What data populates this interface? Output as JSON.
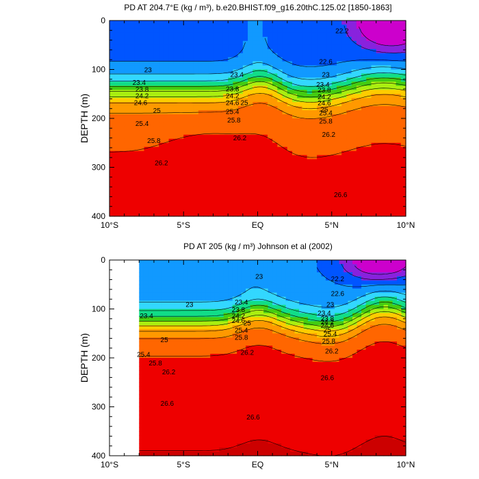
{
  "chart_data": [
    {
      "type": "contour",
      "title": "PD AT 204.7°E (kg / m³), b.e20.BHIST.f09_g16.20thC.125.02 [1850-1863]",
      "ylabel": "DEPTH (m)",
      "xlabel": "",
      "x_ticks": [
        "10°S",
        "5°S",
        "EQ",
        "5°N",
        "10°N"
      ],
      "x_range": [
        -10,
        10
      ],
      "y_ticks": [
        "0",
        "100",
        "200",
        "300",
        "400"
      ],
      "y_range": [
        400,
        0
      ],
      "y_reversed": true,
      "contour_levels": [
        22.2,
        22.6,
        23,
        23.4,
        23.8,
        24.2,
        24.6,
        25,
        25.4,
        25.8,
        26.2,
        26.6
      ],
      "contour_labels": [
        {
          "text": "23",
          "x": -7.4,
          "y": 100
        },
        {
          "text": "23.4",
          "x": -8.0,
          "y": 126
        },
        {
          "text": "23.8",
          "x": -7.8,
          "y": 140
        },
        {
          "text": "24.2",
          "x": -7.8,
          "y": 153
        },
        {
          "text": "24.6",
          "x": -7.9,
          "y": 167
        },
        {
          "text": "25",
          "x": -6.8,
          "y": 183
        },
        {
          "text": "25.4",
          "x": -7.8,
          "y": 210
        },
        {
          "text": "25.8",
          "x": -7.0,
          "y": 245
        },
        {
          "text": "26.2",
          "x": -6.5,
          "y": 290
        },
        {
          "text": "23.4",
          "x": -1.4,
          "y": 110
        },
        {
          "text": "23.8",
          "x": -1.7,
          "y": 139
        },
        {
          "text": "24.2",
          "x": -1.7,
          "y": 153
        },
        {
          "text": "24.6",
          "x": -1.7,
          "y": 167
        },
        {
          "text": "25",
          "x": -0.9,
          "y": 167
        },
        {
          "text": "25.4",
          "x": -1.7,
          "y": 185
        },
        {
          "text": "25.8",
          "x": -1.6,
          "y": 203
        },
        {
          "text": "26.2",
          "x": -1.2,
          "y": 239
        },
        {
          "text": "22.2",
          "x": 5.7,
          "y": 20
        },
        {
          "text": "22.6",
          "x": 4.6,
          "y": 83
        },
        {
          "text": "23",
          "x": 4.6,
          "y": 110
        },
        {
          "text": "23.4",
          "x": 4.4,
          "y": 130
        },
        {
          "text": "23.8",
          "x": 4.5,
          "y": 141
        },
        {
          "text": "24.2",
          "x": 4.5,
          "y": 155
        },
        {
          "text": "24.6",
          "x": 4.5,
          "y": 168
        },
        {
          "text": "25",
          "x": 4.5,
          "y": 181
        },
        {
          "text": "25.4",
          "x": 4.6,
          "y": 188
        },
        {
          "text": "25.8",
          "x": 4.6,
          "y": 205
        },
        {
          "text": "26.2",
          "x": 4.8,
          "y": 232
        },
        {
          "text": "26.6",
          "x": 5.6,
          "y": 355
        }
      ]
    },
    {
      "type": "contour",
      "title": "PD AT 205 (kg / m³) Johnson et al (2002)",
      "ylabel": "DEPTH (m)",
      "xlabel": "",
      "x_ticks": [
        "10°S",
        "5°S",
        "EQ",
        "5°N",
        "10°N"
      ],
      "x_range": [
        -10,
        10
      ],
      "y_ticks": [
        "0",
        "100",
        "200",
        "300",
        "400"
      ],
      "y_range": [
        400,
        0
      ],
      "y_reversed": true,
      "data_x_range": [
        -8,
        10
      ],
      "contour_levels": [
        22.2,
        22.6,
        23,
        23.4,
        23.8,
        24.2,
        24.6,
        25,
        25.4,
        25.8,
        26.2,
        26.6
      ],
      "contour_labels": [
        {
          "text": "23",
          "x": -4.6,
          "y": 90
        },
        {
          "text": "23.4",
          "x": -7.5,
          "y": 113
        },
        {
          "text": "25",
          "x": -6.3,
          "y": 162
        },
        {
          "text": "25.4",
          "x": -7.7,
          "y": 192
        },
        {
          "text": "25.8",
          "x": -6.9,
          "y": 210
        },
        {
          "text": "26.2",
          "x": -6.0,
          "y": 228
        },
        {
          "text": "26.6",
          "x": -6.1,
          "y": 292
        },
        {
          "text": "23",
          "x": 0.1,
          "y": 33
        },
        {
          "text": "23.4",
          "x": -1.1,
          "y": 85
        },
        {
          "text": "23.8",
          "x": -1.3,
          "y": 101
        },
        {
          "text": "24.2",
          "x": -1.3,
          "y": 113
        },
        {
          "text": "24.6",
          "x": -1.3,
          "y": 123
        },
        {
          "text": "25",
          "x": -0.7,
          "y": 128
        },
        {
          "text": "25.4",
          "x": -1.1,
          "y": 143
        },
        {
          "text": "25.8",
          "x": -1.1,
          "y": 157
        },
        {
          "text": "26.2",
          "x": -0.7,
          "y": 188
        },
        {
          "text": "22.2",
          "x": 5.4,
          "y": 38
        },
        {
          "text": "22.6",
          "x": 5.4,
          "y": 68
        },
        {
          "text": "23",
          "x": 4.9,
          "y": 90
        },
        {
          "text": "23.4",
          "x": 4.5,
          "y": 108
        },
        {
          "text": "23.8",
          "x": 4.7,
          "y": 119
        },
        {
          "text": "24.2",
          "x": 4.7,
          "y": 126
        },
        {
          "text": "24.6",
          "x": 4.7,
          "y": 133
        },
        {
          "text": "25",
          "x": 4.7,
          "y": 142
        },
        {
          "text": "25.4",
          "x": 4.9,
          "y": 150
        },
        {
          "text": "25.8",
          "x": 4.8,
          "y": 165
        },
        {
          "text": "26.2",
          "x": 5.0,
          "y": 185
        },
        {
          "text": "26.6",
          "x": 4.7,
          "y": 240
        },
        {
          "text": "26.6",
          "x": -0.3,
          "y": 320
        }
      ]
    }
  ],
  "colors": {
    "ramp": [
      "#cc00cc",
      "#8822dd",
      "#3311ee",
      "#0055ff",
      "#1199ff",
      "#33d7ff",
      "#22ffdd",
      "#11dd88",
      "#44cc11",
      "#aaee11",
      "#ffff00",
      "#ffcc00",
      "#ff9900",
      "#ff6600",
      "#ff2200",
      "#ee0000",
      "#cc0000"
    ],
    "line": "#000000",
    "background": "#ffffff"
  }
}
